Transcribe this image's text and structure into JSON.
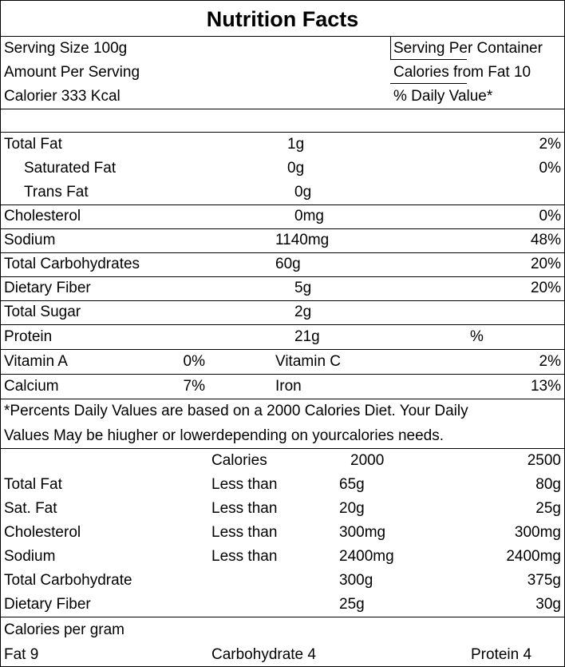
{
  "title": "Nutrition Facts",
  "header": {
    "serving_size": "Serving Size 100g",
    "amount_per_serving": "Amount Per Serving",
    "calories": "Calorier 333 Kcal",
    "serving_per_container": "Serving Per Container",
    "calories_from_fat": "Calories from Fat 10",
    "daily_value": "% Daily Value*"
  },
  "nutrients": [
    {
      "name": "Total Fat",
      "amount": "1g",
      "dv": "2%"
    },
    {
      "name": "Saturated Fat",
      "amount": "0g",
      "dv": "0%"
    },
    {
      "name": "Trans Fat",
      "amount": "0g",
      "dv": ""
    },
    {
      "name": "Cholesterol",
      "amount": "0mg",
      "dv": "0%"
    },
    {
      "name": "Sodium",
      "amount": "1140mg",
      "dv": "48%"
    },
    {
      "name": "Total Carbohydrates",
      "amount": "60g",
      "dv": "20%"
    },
    {
      "name": "Dietary Fiber",
      "amount": "5g",
      "dv": "20%"
    },
    {
      "name": "Total Sugar",
      "amount": "2g",
      "dv": ""
    },
    {
      "name": "Protein",
      "amount": "21g",
      "dv": "%"
    }
  ],
  "vitamins": [
    {
      "name1": "Vitamin A",
      "val1": "0%",
      "name2": "Vitamin C",
      "val2": "2%"
    },
    {
      "name1": "Calcium",
      "val1": "7%",
      "name2": "Iron",
      "val2": "13%"
    }
  ],
  "footnote": {
    "line1": "*Percents Daily Values  are based on a 2000 Calories Diet. Your Daily",
    "line2": "Values May be hiugher or lowerdepending on yourcalories needs."
  },
  "reference": {
    "header": {
      "label": "Calories",
      "col1": "2000",
      "col2": "2500"
    },
    "rows": [
      {
        "name": "Total Fat",
        "qual": "Less than",
        "col1": "65g",
        "col2": "80g"
      },
      {
        "name": "Sat. Fat",
        "qual": "Less than",
        "col1": "20g",
        "col2": "25g"
      },
      {
        "name": "Cholesterol",
        "qual": "Less than",
        "col1": "300mg",
        "col2": "300mg"
      },
      {
        "name": "Sodium",
        "qual": "Less than",
        "col1": "2400mg",
        "col2": "2400mg"
      },
      {
        "name": "Total Carbohydrate",
        "qual": "",
        "col1": "300g",
        "col2": "375g"
      },
      {
        "name": "Dietary Fiber",
        "qual": "",
        "col1": "25g",
        "col2": "30g"
      }
    ]
  },
  "calories_per_gram": {
    "heading": "Calories per gram",
    "fat": "Fat 9",
    "carbohydrate": "Carbohydrate 4",
    "protein": "Protein 4"
  }
}
